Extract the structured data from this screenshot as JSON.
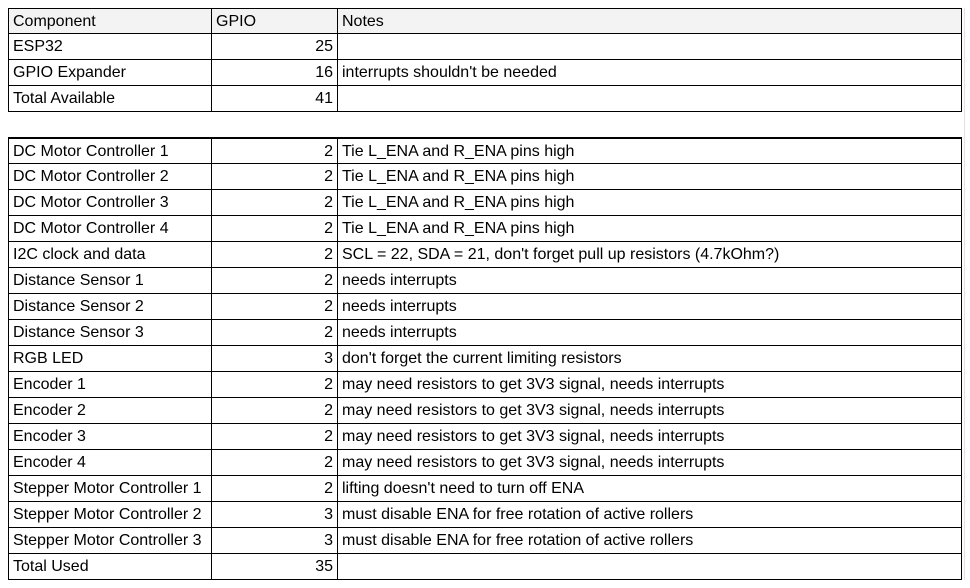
{
  "headers": {
    "component": "Component",
    "gpio": "GPIO",
    "notes": "Notes"
  },
  "available": [
    {
      "component": "ESP32",
      "gpio": "25",
      "notes": ""
    },
    {
      "component": "GPIO Expander",
      "gpio": "16",
      "notes": "interrupts shouldn't be needed"
    },
    {
      "component": "Total Available",
      "gpio": "41",
      "notes": ""
    }
  ],
  "used": [
    {
      "component": "DC Motor Controller 1",
      "gpio": "2",
      "notes": "Tie L_ENA and R_ENA pins high"
    },
    {
      "component": "DC Motor Controller 2",
      "gpio": "2",
      "notes": "Tie L_ENA and R_ENA pins high"
    },
    {
      "component": "DC Motor Controller 3",
      "gpio": "2",
      "notes": "Tie L_ENA and R_ENA pins high"
    },
    {
      "component": "DC Motor Controller 4",
      "gpio": "2",
      "notes": "Tie L_ENA and R_ENA pins high"
    },
    {
      "component": "I2C clock and data",
      "gpio": "2",
      "notes": "SCL = 22, SDA = 21, don't forget pull up resistors (4.7kOhm?)"
    },
    {
      "component": "Distance Sensor 1",
      "gpio": "2",
      "notes": "needs interrupts"
    },
    {
      "component": "Distance Sensor 2",
      "gpio": "2",
      "notes": "needs interrupts"
    },
    {
      "component": "Distance Sensor 3",
      "gpio": "2",
      "notes": "needs interrupts"
    },
    {
      "component": "RGB LED",
      "gpio": "3",
      "notes": "don't forget the current limiting resistors"
    },
    {
      "component": "Encoder 1",
      "gpio": "2",
      "notes": "may need resistors to get 3V3 signal, needs interrupts"
    },
    {
      "component": "Encoder 2",
      "gpio": "2",
      "notes": "may need resistors to get 3V3 signal, needs interrupts"
    },
    {
      "component": "Encoder 3",
      "gpio": "2",
      "notes": "may need resistors to get 3V3 signal, needs interrupts"
    },
    {
      "component": "Encoder 4",
      "gpio": "2",
      "notes": "may need resistors to get 3V3 signal, needs interrupts"
    },
    {
      "component": "Stepper Motor Controller 1",
      "gpio": "2",
      "notes": "lifting doesn't need to turn off ENA"
    },
    {
      "component": "Stepper Motor Controller 2",
      "gpio": "3",
      "notes": "must disable ENA for free rotation of active rollers"
    },
    {
      "component": "Stepper Motor Controller 3",
      "gpio": "3",
      "notes": "must disable ENA for free rotation of active rollers"
    },
    {
      "component": "Total Used",
      "gpio": "35",
      "notes": ""
    }
  ]
}
